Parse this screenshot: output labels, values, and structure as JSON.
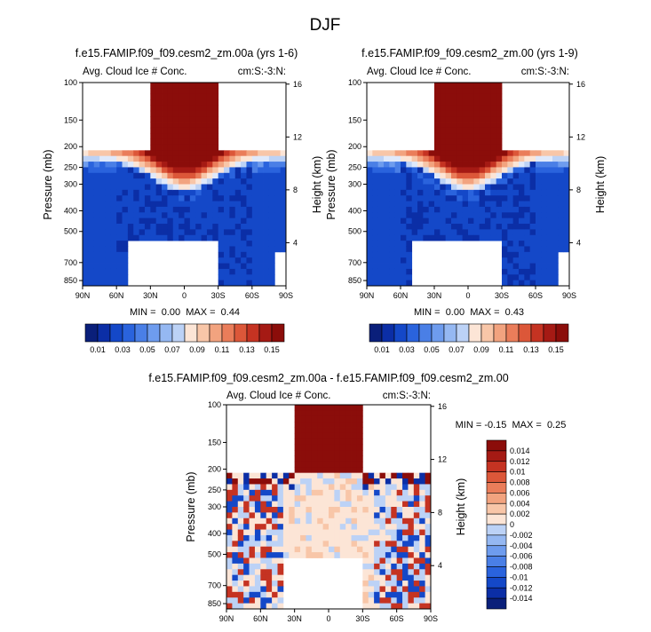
{
  "page": {
    "title": "DJF"
  },
  "colors": {
    "diverging_scale": [
      "#0a1f7a",
      "#0b2ea6",
      "#1448c8",
      "#2a63dd",
      "#4a7fe6",
      "#6e9cee",
      "#95b8f2",
      "#bcd2f6",
      "#dfe9fb",
      "#fce5d6",
      "#f8c6a8",
      "#f2a37f",
      "#ea7d5a",
      "#dc5739",
      "#c53322",
      "#a51a14",
      "#8b0d0a"
    ],
    "missing": "#ffffff"
  },
  "chart_data": [
    {
      "type": "heatmap",
      "panel_title": "f.e15.FAMIP.f09_f09.cesm2_zm.00a (yrs 1-6)",
      "left_string": "Avg. Cloud Ice # Conc.",
      "right_string": "cm:S:-3:N:",
      "ylabel": "Pressure (mb)",
      "ylabel_right": "Height (km)",
      "x_tick_labels": [
        "90N",
        "60N",
        "30N",
        "0",
        "30S",
        "60S",
        "90S"
      ],
      "y_tick_labels": [
        "100",
        "150",
        "200",
        "250",
        "300",
        "400",
        "500",
        "700",
        "850"
      ],
      "y_right_tick_labels": [
        "16",
        "12",
        "8",
        "4"
      ],
      "stats_text": "MIN =  0.00  MAX =  0.44",
      "pattern": "base"
    },
    {
      "type": "heatmap",
      "panel_title": "f.e15.FAMIP.f09_f09.cesm2_zm.00 (yrs 1-9)",
      "left_string": "Avg. Cloud Ice # Conc.",
      "right_string": "cm:S:-3:N:",
      "ylabel": "Pressure (mb)",
      "ylabel_right": "Height (km)",
      "x_tick_labels": [
        "90N",
        "60N",
        "30N",
        "0",
        "30S",
        "60S",
        "90S"
      ],
      "y_tick_labels": [
        "100",
        "150",
        "200",
        "250",
        "300",
        "400",
        "500",
        "700",
        "850"
      ],
      "y_right_tick_labels": [
        "16",
        "12",
        "8",
        "4"
      ],
      "stats_text": "MIN =  0.00  MAX =  0.43",
      "pattern": "base"
    },
    {
      "type": "heatmap",
      "panel_title": "f.e15.FAMIP.f09_f09.cesm2_zm.00a - f.e15.FAMIP.f09_f09.cesm2_zm.00",
      "left_string": "Avg. Cloud Ice # Conc.",
      "right_string": "cm:S:-3:N:",
      "ylabel": "Pressure (mb)",
      "ylabel_right": "Height (km)",
      "x_tick_labels": [
        "90N",
        "60N",
        "30N",
        "0",
        "30S",
        "60S",
        "90S"
      ],
      "y_tick_labels": [
        "100",
        "150",
        "200",
        "250",
        "300",
        "400",
        "500",
        "700",
        "850"
      ],
      "y_right_tick_labels": [
        "16",
        "12",
        "8",
        "4"
      ],
      "stats_text": "MIN = -0.15  MAX =  0.25",
      "pattern": "diff"
    }
  ],
  "colorbars": [
    {
      "orientation": "horizontal",
      "labels": [
        "0.01",
        "0.03",
        "0.05",
        "0.07",
        "0.09",
        "0.11",
        "0.13",
        "0.15"
      ]
    },
    {
      "orientation": "horizontal",
      "labels": [
        "0.01",
        "0.03",
        "0.05",
        "0.07",
        "0.09",
        "0.11",
        "0.13",
        "0.15"
      ]
    },
    {
      "orientation": "vertical",
      "labels": [
        "0.014",
        "0.012",
        "0.01",
        "0.008",
        "0.006",
        "0.004",
        "0.002",
        "0",
        "-0.002",
        "-0.004",
        "-0.006",
        "-0.008",
        "-0.01",
        "-0.012",
        "-0.014"
      ]
    }
  ]
}
